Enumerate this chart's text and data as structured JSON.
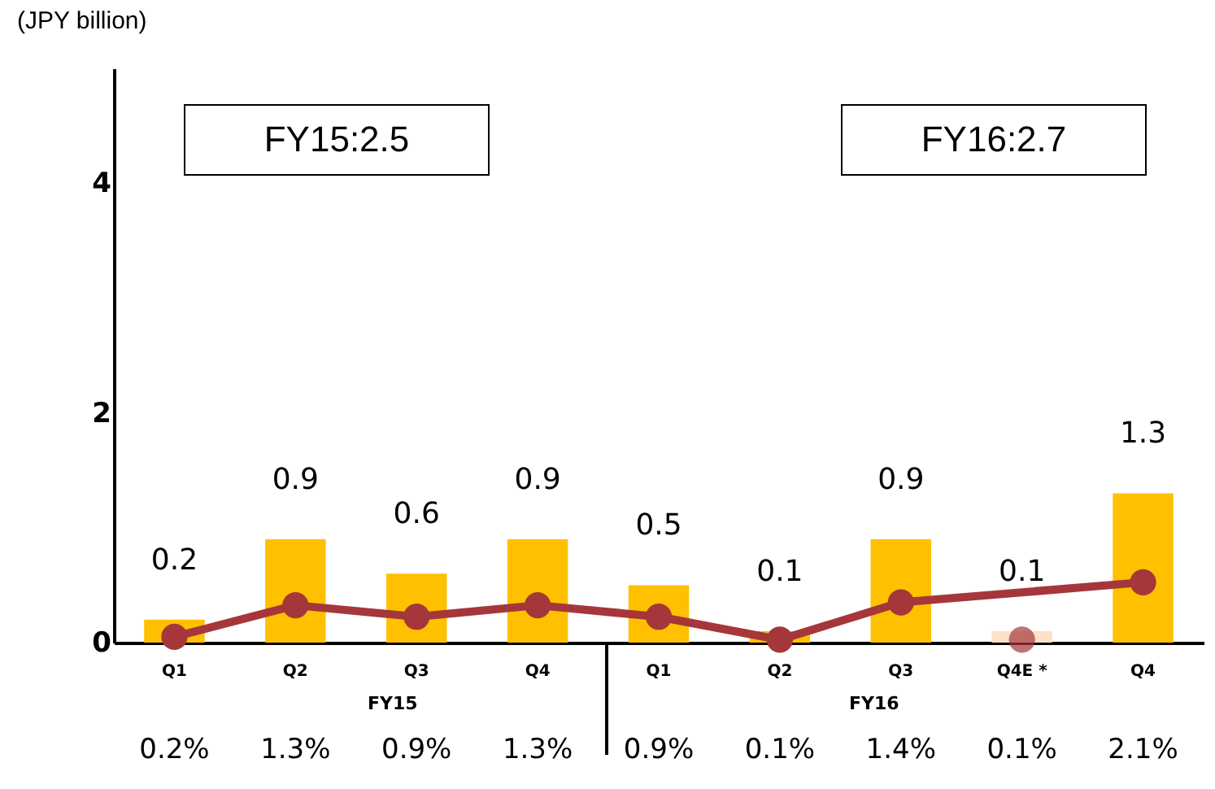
{
  "chart_data": {
    "type": "bar",
    "ylabel": "(JPY billion)",
    "categories": [
      "Q1",
      "Q2",
      "Q3",
      "Q4",
      "Q1",
      "Q2",
      "Q3",
      "Q4E *",
      "Q4"
    ],
    "ylim": [
      0,
      5
    ],
    "yticks": [
      0,
      2,
      4
    ],
    "y2lim": [
      0,
      20
    ],
    "data_labels": true,
    "grid": false,
    "marker": "circle",
    "series": [
      {
        "values": [
          0.2,
          0.9,
          0.6,
          0.9,
          0.5,
          0.1,
          0.9,
          0.1,
          1.3
        ],
        "colors": [
          "#ffc000",
          "#ffc000",
          "#ffc000",
          "#ffc000",
          "#ffc000",
          "#ffc000",
          "#ffc000",
          "#fde2c8",
          "#ffc000"
        ]
      },
      {
        "type": "line",
        "axis": "y2",
        "color": "#a5373a",
        "values": [
          0.2,
          1.3,
          0.9,
          1.3,
          0.9,
          0.1,
          1.4,
          null,
          2.1
        ],
        "value_labels": [
          "0.2%",
          "1.3%",
          "0.9%",
          "1.3%",
          "0.9%",
          "0.1%",
          "1.4%",
          null,
          "2.1%"
        ]
      },
      {
        "type": "scatter",
        "axis": "y2",
        "color": "#a5373a",
        "values": [
          null,
          null,
          null,
          null,
          null,
          null,
          null,
          0.1,
          null
        ],
        "value_labels": [
          null,
          null,
          null,
          null,
          null,
          null,
          null,
          "0.1%",
          null
        ]
      }
    ],
    "annotations": [
      "FY15:2.5",
      "FY16:2.7",
      "FY15",
      "FY16"
    ]
  }
}
